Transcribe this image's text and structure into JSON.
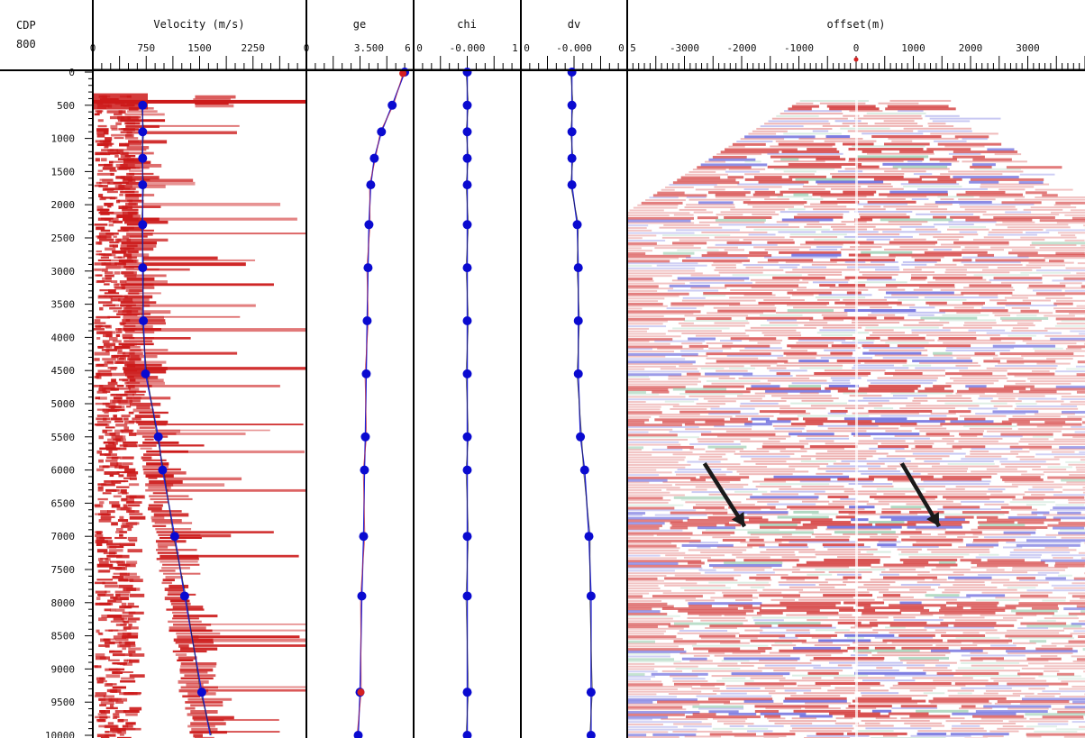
{
  "header": {
    "cdp_label": "CDP",
    "cdp_value": "800"
  },
  "colors": {
    "seismic_positive": "#cc1a1a",
    "seismic_negative": "#4b4bd6",
    "seismic_faint": "#8fc8a8",
    "curve": "#1f1fd6",
    "picks": "#0a0ad0",
    "pick_alt": "#d42020",
    "arrow": "#1a1a1a",
    "frame": "#000000"
  },
  "chart_data": [
    {
      "type": "line",
      "name": "velocity-panel",
      "title": "Velocity (m/s)",
      "xlim": [
        0,
        3000
      ],
      "x_ticks": [
        "0",
        "750",
        "1500",
        "2250"
      ],
      "y_ticks": [
        "0",
        "500",
        "1000",
        "1500",
        "2000",
        "2500",
        "3000",
        "3500",
        "4000",
        "4500",
        "5000",
        "5500",
        "6000",
        "6500",
        "7000",
        "7500",
        "8000",
        "8500",
        "9000",
        "9500",
        "10000"
      ],
      "ylim": [
        0,
        10000
      ],
      "y_reversed": true,
      "points": [
        {
          "y": 500,
          "x": 700
        },
        {
          "y": 900,
          "x": 700
        },
        {
          "y": 1300,
          "x": 700
        },
        {
          "y": 1700,
          "x": 700
        },
        {
          "y": 2300,
          "x": 700
        },
        {
          "y": 2950,
          "x": 700
        },
        {
          "y": 3750,
          "x": 710
        },
        {
          "y": 4550,
          "x": 740
        },
        {
          "y": 5500,
          "x": 920
        },
        {
          "y": 6000,
          "x": 980
        },
        {
          "y": 7000,
          "x": 1150
        },
        {
          "y": 7900,
          "x": 1290
        },
        {
          "y": 9350,
          "x": 1530
        },
        {
          "y": 10000,
          "x": 1650
        }
      ],
      "background": "semblance"
    },
    {
      "type": "line",
      "name": "ge-panel",
      "title": "ge",
      "xlim": [
        0,
        6
      ],
      "x_ticks": [
        "0",
        "3.500",
        "6.0"
      ],
      "ylim": [
        0,
        10000
      ],
      "y_reversed": true,
      "points": [
        {
          "y": 0,
          "x": 5.5
        },
        {
          "y": 500,
          "x": 4.8
        },
        {
          "y": 900,
          "x": 4.2
        },
        {
          "y": 1300,
          "x": 3.8
        },
        {
          "y": 1700,
          "x": 3.6
        },
        {
          "y": 2300,
          "x": 3.5
        },
        {
          "y": 2950,
          "x": 3.45
        },
        {
          "y": 3750,
          "x": 3.4
        },
        {
          "y": 4550,
          "x": 3.35
        },
        {
          "y": 5500,
          "x": 3.3
        },
        {
          "y": 6000,
          "x": 3.25
        },
        {
          "y": 7000,
          "x": 3.2
        },
        {
          "y": 7900,
          "x": 3.1
        },
        {
          "y": 9350,
          "x": 3.0
        },
        {
          "y": 10000,
          "x": 2.9
        }
      ]
    },
    {
      "type": "line",
      "name": "chi-panel",
      "title": "chi",
      "xlim": [
        -1,
        1
      ],
      "x_ticks": [
        "-0.000",
        "1.0"
      ],
      "ylim": [
        0,
        10000
      ],
      "y_reversed": true,
      "points": [
        {
          "y": 0,
          "x": 0
        },
        {
          "y": 500,
          "x": 0
        },
        {
          "y": 900,
          "x": 0
        },
        {
          "y": 1300,
          "x": 0
        },
        {
          "y": 1700,
          "x": 0
        },
        {
          "y": 2300,
          "x": 0
        },
        {
          "y": 2950,
          "x": 0
        },
        {
          "y": 3750,
          "x": 0
        },
        {
          "y": 4550,
          "x": 0
        },
        {
          "y": 5500,
          "x": 0
        },
        {
          "y": 6000,
          "x": 0
        },
        {
          "y": 7000,
          "x": 0
        },
        {
          "y": 7900,
          "x": 0
        },
        {
          "y": 9350,
          "x": 0
        },
        {
          "y": 10000,
          "x": 0
        }
      ]
    },
    {
      "type": "line",
      "name": "dv-panel",
      "title": "dv",
      "xlim": [
        -0.5,
        0.5
      ],
      "x_ticks": [
        "-0.000",
        "0.5"
      ],
      "ylim": [
        0,
        10000
      ],
      "y_reversed": true,
      "points": [
        {
          "y": 0,
          "x": -0.02
        },
        {
          "y": 500,
          "x": -0.02
        },
        {
          "y": 900,
          "x": -0.02
        },
        {
          "y": 1300,
          "x": -0.02
        },
        {
          "y": 1700,
          "x": -0.02
        },
        {
          "y": 2300,
          "x": 0.03
        },
        {
          "y": 2950,
          "x": 0.04
        },
        {
          "y": 3750,
          "x": 0.04
        },
        {
          "y": 4550,
          "x": 0.04
        },
        {
          "y": 5500,
          "x": 0.06
        },
        {
          "y": 6000,
          "x": 0.1
        },
        {
          "y": 7000,
          "x": 0.14
        },
        {
          "y": 7900,
          "x": 0.16
        },
        {
          "y": 9350,
          "x": 0.16
        },
        {
          "y": 10000,
          "x": 0.16
        }
      ]
    },
    {
      "type": "heatmap",
      "name": "gather-panel",
      "title": "offset(m)",
      "xlim": [
        -4000,
        4000
      ],
      "x_ticks": [
        "-3000",
        "-2000",
        "-1000",
        "0",
        "1000",
        "2000",
        "3000"
      ],
      "ylim": [
        0,
        10000
      ],
      "y_reversed": true,
      "annotations": [
        {
          "type": "arrow",
          "from": [
            -2650,
            5900
          ],
          "to": [
            -1950,
            6850
          ]
        },
        {
          "type": "arrow",
          "from": [
            800,
            5900
          ],
          "to": [
            1450,
            6850
          ]
        }
      ]
    }
  ]
}
